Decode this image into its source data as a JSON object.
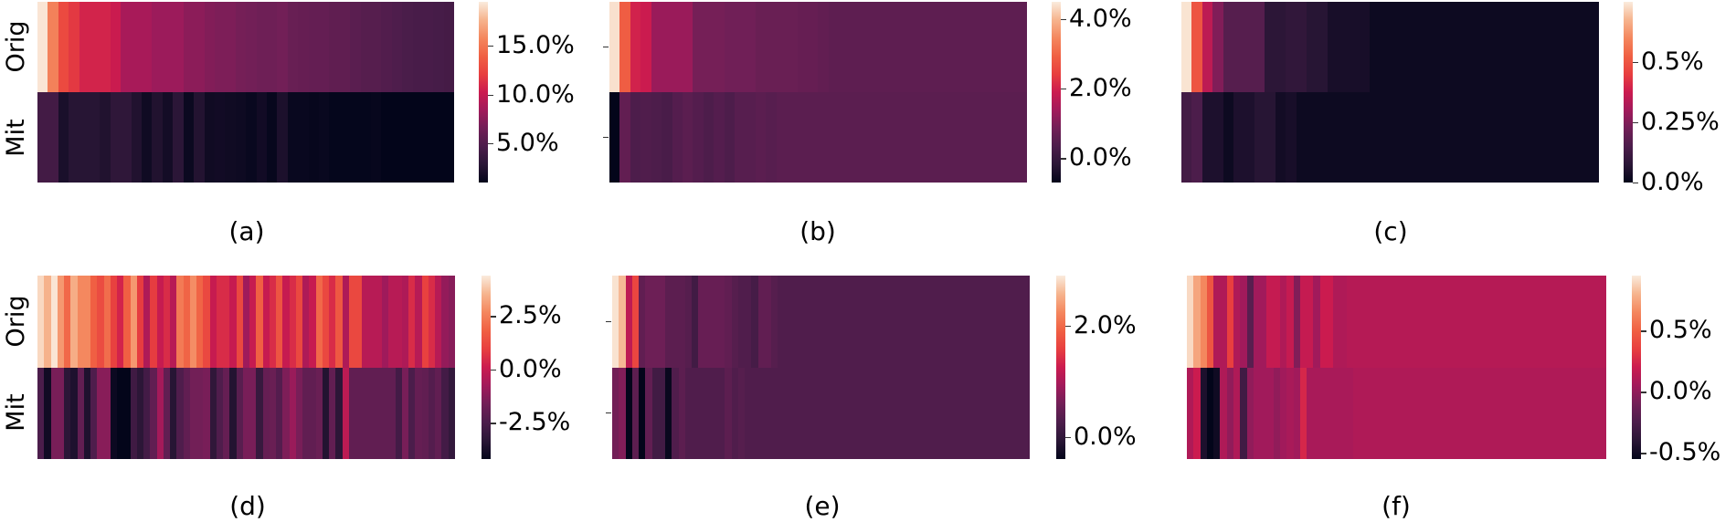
{
  "figure": {
    "row_labels": [
      "Orig",
      "Mit"
    ],
    "captions": [
      "(a)",
      "(b)",
      "(c)",
      "(d)",
      "(e)",
      "(f)"
    ]
  },
  "colors": {
    "rocket_stops": [
      "#03051a",
      "#2a1636",
      "#4c1d4b",
      "#711f57",
      "#a11a5b",
      "#cb1b4f",
      "#e83f3f",
      "#f06043",
      "#f4875e",
      "#f6b48e",
      "#faebdd"
    ]
  },
  "chart_data": [
    {
      "type": "heatmap",
      "panel": "(a)",
      "title": "",
      "ylabel_ticks": [
        "Orig",
        "Mit"
      ],
      "show_ylabels": true,
      "colorbar": {
        "ticks": [
          "15.0%",
          "10.0%",
          "5.0%"
        ],
        "tick_values": [
          15.0,
          10.0,
          5.0
        ],
        "range": [
          1.0,
          19.5
        ]
      },
      "rows": {
        "Orig": [
          19.3,
          15.5,
          12.7,
          11.8,
          10.7,
          10.7,
          10.7,
          10.2,
          8.7,
          8.7,
          8.7,
          8.2,
          8.2,
          8.2,
          7.6,
          7.6,
          7.2,
          7.0,
          7.0,
          6.7,
          6.6,
          6.4,
          6.4,
          6.6,
          6.1,
          6.0,
          5.9,
          5.9,
          5.7,
          5.7,
          5.4,
          5.2,
          5.2,
          5.0,
          4.8,
          4.6,
          4.5,
          4.5,
          4.4,
          4.3
        ],
        "Mit": [
          4.2,
          4.2,
          2.1,
          2.7,
          2.7,
          2.7,
          2.4,
          3.1,
          3.1,
          2.4,
          1.6,
          2.4,
          1.8,
          2.9,
          1.4,
          2.5,
          1.6,
          1.7,
          1.6,
          1.5,
          1.3,
          1.7,
          1.2,
          2.2,
          1.3,
          1.3,
          1.2,
          1.3,
          1.1,
          1.1,
          1.1,
          1.1,
          1.2,
          1.0,
          1.0,
          1.0,
          1.0,
          1.0,
          1.0,
          1.0
        ]
      }
    },
    {
      "type": "heatmap",
      "panel": "(b)",
      "title": "",
      "ylabel_ticks": [
        "Orig",
        "Mit"
      ],
      "show_ylabels": false,
      "colorbar": {
        "ticks": [
          "4.0%",
          "2.0%",
          "0.0%"
        ],
        "tick_values": [
          4.0,
          2.0,
          0.0
        ],
        "range": [
          -0.7,
          4.5
        ]
      },
      "rows": {
        "Orig": [
          4.4,
          2.9,
          2.0,
          1.9,
          1.3,
          1.3,
          1.3,
          1.3,
          0.9,
          0.9,
          0.9,
          0.85,
          0.85,
          0.85,
          0.75,
          0.75,
          0.75,
          0.75,
          0.7,
          0.7,
          0.65,
          0.6,
          0.6,
          0.6,
          0.6,
          0.6,
          0.6,
          0.6,
          0.6,
          0.6,
          0.6,
          0.6,
          0.6,
          0.6,
          0.6,
          0.6,
          0.6,
          0.6,
          0.6,
          0.6
        ],
        "Mit": [
          -0.7,
          0.65,
          0.35,
          0.4,
          0.35,
          0.3,
          0.45,
          0.55,
          0.45,
          0.35,
          0.45,
          0.35,
          0.5,
          0.5,
          0.55,
          0.5,
          0.55,
          0.55,
          0.55,
          0.55,
          0.55,
          0.55,
          0.55,
          0.55,
          0.55,
          0.55,
          0.55,
          0.55,
          0.55,
          0.55,
          0.55,
          0.55,
          0.55,
          0.55,
          0.55,
          0.55,
          0.55,
          0.55,
          0.55,
          0.55
        ]
      }
    },
    {
      "type": "heatmap",
      "panel": "(c)",
      "title": "",
      "ylabel_ticks": [
        "Orig",
        "Mit"
      ],
      "show_ylabels": false,
      "colorbar": {
        "ticks": [
          "0.5%",
          "0.25%",
          "0.0%"
        ],
        "tick_values": [
          0.5,
          0.25,
          0.0
        ],
        "range": [
          0.0,
          0.75
        ]
      },
      "rows": {
        "Orig": [
          0.74,
          0.5,
          0.35,
          0.25,
          0.17,
          0.17,
          0.17,
          0.17,
          0.08,
          0.08,
          0.09,
          0.09,
          0.07,
          0.07,
          0.04,
          0.04,
          0.04,
          0.04,
          0.02,
          0.02,
          0.02,
          0.02,
          0.02,
          0.02,
          0.02,
          0.02,
          0.02,
          0.02,
          0.02,
          0.02,
          0.02,
          0.02,
          0.02,
          0.02,
          0.02,
          0.02,
          0.02,
          0.02,
          0.02,
          0.02
        ],
        "Mit": [
          0.13,
          0.15,
          0.05,
          0.05,
          0.02,
          0.05,
          0.05,
          0.07,
          0.07,
          0.03,
          0.04,
          0.02,
          0.02,
          0.02,
          0.02,
          0.02,
          0.02,
          0.02,
          0.02,
          0.02,
          0.02,
          0.02,
          0.02,
          0.02,
          0.02,
          0.02,
          0.02,
          0.02,
          0.02,
          0.02,
          0.02,
          0.02,
          0.02,
          0.02,
          0.02,
          0.02,
          0.02,
          0.02,
          0.02,
          0.02
        ]
      }
    },
    {
      "type": "heatmap",
      "panel": "(d)",
      "title": "",
      "ylabel_ticks": [
        "Orig",
        "Mit"
      ],
      "show_ylabels": true,
      "colorbar": {
        "ticks": [
          "2.5%",
          "0.0%",
          "-2.5%"
        ],
        "tick_values": [
          2.5,
          0.0,
          -2.5
        ],
        "range": [
          -4.2,
          4.4
        ]
      },
      "rows": {
        "Orig": [
          4.1,
          3.5,
          4.3,
          3.0,
          2.0,
          3.4,
          2.7,
          2.7,
          1.8,
          1.3,
          2.1,
          1.0,
          0.3,
          1.8,
          3.0,
          0.9,
          -0.5,
          0.9,
          0.0,
          0.5,
          -0.3,
          2.4,
          1.9,
          2.8,
          1.9,
          1.2,
          0.0,
          0.5,
          0.5,
          0.0,
          1.2,
          -0.8,
          0.0,
          1.8,
          0.0,
          0.5,
          1.5,
          0.0,
          0.5,
          1.2,
          -0.5,
          0.0,
          2.0,
          1.2,
          0.5,
          1.6,
          -0.5,
          1.2,
          1.2,
          -0.3,
          -0.3,
          -0.3,
          -0.8,
          -0.3,
          -0.3,
          -0.5,
          0.5,
          -0.3,
          1.0,
          0.5,
          -0.3,
          -1.0,
          -1.2
        ],
        "Mit": [
          -2.5,
          -3.9,
          -1.5,
          -1.5,
          -3.3,
          -3.6,
          -2.0,
          -3.6,
          -2.4,
          -1.2,
          -1.2,
          -4.0,
          -4.2,
          -4.2,
          -2.8,
          -3.3,
          -2.7,
          -2.0,
          -0.7,
          -2.0,
          -3.4,
          -2.4,
          -2.0,
          -1.6,
          -1.6,
          -1.5,
          -3.2,
          -2.4,
          -1.9,
          -3.5,
          -2.2,
          -1.5,
          -1.5,
          -3.0,
          -1.9,
          -1.8,
          -2.3,
          -1.4,
          -0.9,
          -1.5,
          -2.0,
          -2.0,
          -1.8,
          -3.5,
          -2.0,
          -3.3,
          -0.2,
          -2.0,
          -2.0,
          -2.0,
          -2.0,
          -2.0,
          -2.0,
          -2.0,
          -2.7,
          -1.5,
          -2.5,
          -1.9,
          -2.0,
          -2.3,
          -2.0,
          -2.7,
          -3.1
        ]
      }
    },
    {
      "type": "heatmap",
      "panel": "(e)",
      "title": "",
      "ylabel_ticks": [
        "Orig",
        "Mit"
      ],
      "show_ylabels": false,
      "colorbar": {
        "ticks": [
          "2.0%",
          "0.0%"
        ],
        "tick_values": [
          2.0,
          0.0
        ],
        "range": [
          -0.4,
          2.9
        ]
      },
      "rows": {
        "Orig": [
          2.85,
          2.6,
          1.15,
          1.65,
          0.45,
          0.55,
          0.55,
          0.55,
          0.4,
          0.4,
          0.4,
          0.35,
          0.15,
          0.5,
          0.5,
          0.5,
          0.5,
          0.45,
          0.35,
          0.3,
          0.3,
          0.2,
          0.45,
          0.45,
          0.35,
          0.3,
          0.3,
          0.3,
          0.3,
          0.3,
          0.3,
          0.3,
          0.3,
          0.3,
          0.3,
          0.3,
          0.3,
          0.3,
          0.3,
          0.3,
          0.3,
          0.3,
          0.3,
          0.3,
          0.3,
          0.3,
          0.3,
          0.3,
          0.3,
          0.3,
          0.3,
          0.3,
          0.3,
          0.3,
          0.3,
          0.3,
          0.3,
          0.3,
          0.3,
          0.3,
          0.3,
          0.3,
          0.3
        ],
        "Mit": [
          0.6,
          0.7,
          -0.4,
          0.4,
          -0.45,
          0.45,
          0.15,
          0.15,
          -0.35,
          0.3,
          0.4,
          0.3,
          0.3,
          0.3,
          0.3,
          0.3,
          0.3,
          0.4,
          0.3,
          0.35,
          0.3,
          0.3,
          0.3,
          0.3,
          0.3,
          0.3,
          0.3,
          0.3,
          0.3,
          0.3,
          0.3,
          0.3,
          0.3,
          0.3,
          0.3,
          0.3,
          0.3,
          0.3,
          0.3,
          0.3,
          0.3,
          0.3,
          0.3,
          0.3,
          0.3,
          0.3,
          0.3,
          0.3,
          0.3,
          0.3,
          0.3,
          0.3,
          0.3,
          0.3,
          0.3,
          0.3,
          0.3,
          0.3,
          0.3,
          0.3,
          0.3,
          0.3,
          0.3
        ]
      }
    },
    {
      "type": "heatmap",
      "panel": "(f)",
      "title": "",
      "ylabel_ticks": [
        "Orig",
        "Mit"
      ],
      "show_ylabels": false,
      "colorbar": {
        "ticks": [
          "0.5%",
          "0.0%",
          "-0.5%"
        ],
        "tick_values": [
          0.5,
          0.0,
          -0.5
        ],
        "range": [
          -0.55,
          0.95
        ]
      },
      "rows": {
        "Orig": [
          0.9,
          0.75,
          0.65,
          0.45,
          0.1,
          0.1,
          0.35,
          0.1,
          0.05,
          -0.2,
          0.05,
          0.05,
          0.18,
          0.18,
          0.1,
          0.18,
          -0.05,
          0.18,
          0.18,
          0.05,
          0.2,
          0.2,
          0.1,
          0.1,
          0.12,
          0.12,
          0.12,
          0.12,
          0.12,
          0.12,
          0.12,
          0.12,
          0.12,
          0.12,
          0.12,
          0.12,
          0.12,
          0.12,
          0.12,
          0.12,
          0.12,
          0.12,
          0.12,
          0.12,
          0.12,
          0.12,
          0.12,
          0.12,
          0.12,
          0.12,
          0.12,
          0.12,
          0.12,
          0.12,
          0.12,
          0.12,
          0.12,
          0.12,
          0.12,
          0.12,
          0.12,
          0.12,
          0.12
        ],
        "Mit": [
          0.1,
          0.2,
          -0.45,
          -0.55,
          -0.5,
          0.1,
          0.0,
          0.1,
          -0.3,
          0.0,
          0.05,
          0.05,
          0.05,
          0.0,
          0.05,
          0.08,
          0.05,
          0.25,
          0.08,
          0.08,
          0.08,
          0.08,
          0.08,
          0.08,
          0.08,
          0.1,
          0.1,
          0.1,
          0.1,
          0.1,
          0.1,
          0.1,
          0.1,
          0.1,
          0.1,
          0.1,
          0.1,
          0.1,
          0.1,
          0.1,
          0.1,
          0.1,
          0.1,
          0.1,
          0.1,
          0.1,
          0.1,
          0.1,
          0.1,
          0.1,
          0.1,
          0.1,
          0.1,
          0.1,
          0.1,
          0.1,
          0.1,
          0.1,
          0.1,
          0.1,
          0.1,
          0.1,
          0.1
        ]
      }
    }
  ]
}
